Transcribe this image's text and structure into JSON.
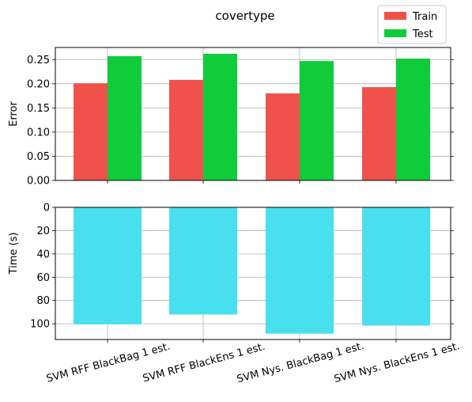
{
  "chart_data": [
    {
      "type": "bar",
      "title": "covertype",
      "ylabel": "Error",
      "xlabel": "",
      "categories": [
        "SVM RFF BlackBag 1 est.",
        "SVM RFF BlackEns 1 est.",
        "SVM Nys. BlackBag 1 est.",
        "SVM Nys. BlackEns 1 est."
      ],
      "series": [
        {
          "name": "Train",
          "color": "#ef524b",
          "values": [
            0.201,
            0.208,
            0.18,
            0.193
          ]
        },
        {
          "name": "Test",
          "color": "#10cc3a",
          "values": [
            0.257,
            0.262,
            0.247,
            0.252
          ]
        }
      ],
      "ylim": [
        0,
        0.275
      ],
      "yticks": [
        "0.00",
        "0.05",
        "0.10",
        "0.15",
        "0.20",
        "0.25"
      ],
      "grid": true,
      "legend_position": "top-right"
    },
    {
      "type": "bar",
      "ylabel": "Time (s)",
      "xlabel": "",
      "categories": [
        "SVM RFF BlackBag 1 est.",
        "SVM RFF BlackEns 1 est.",
        "SVM Nys. BlackBag 1 est.",
        "SVM Nys. BlackEns 1 est."
      ],
      "series": [
        {
          "name": "",
          "color": "#48dfee",
          "values": [
            100.5,
            92,
            108.5,
            101.5
          ]
        }
      ],
      "ylim": [
        0,
        113.5
      ],
      "y_inverted": true,
      "yticks": [
        "0",
        "20",
        "40",
        "60",
        "80",
        "100"
      ],
      "grid": true
    }
  ]
}
